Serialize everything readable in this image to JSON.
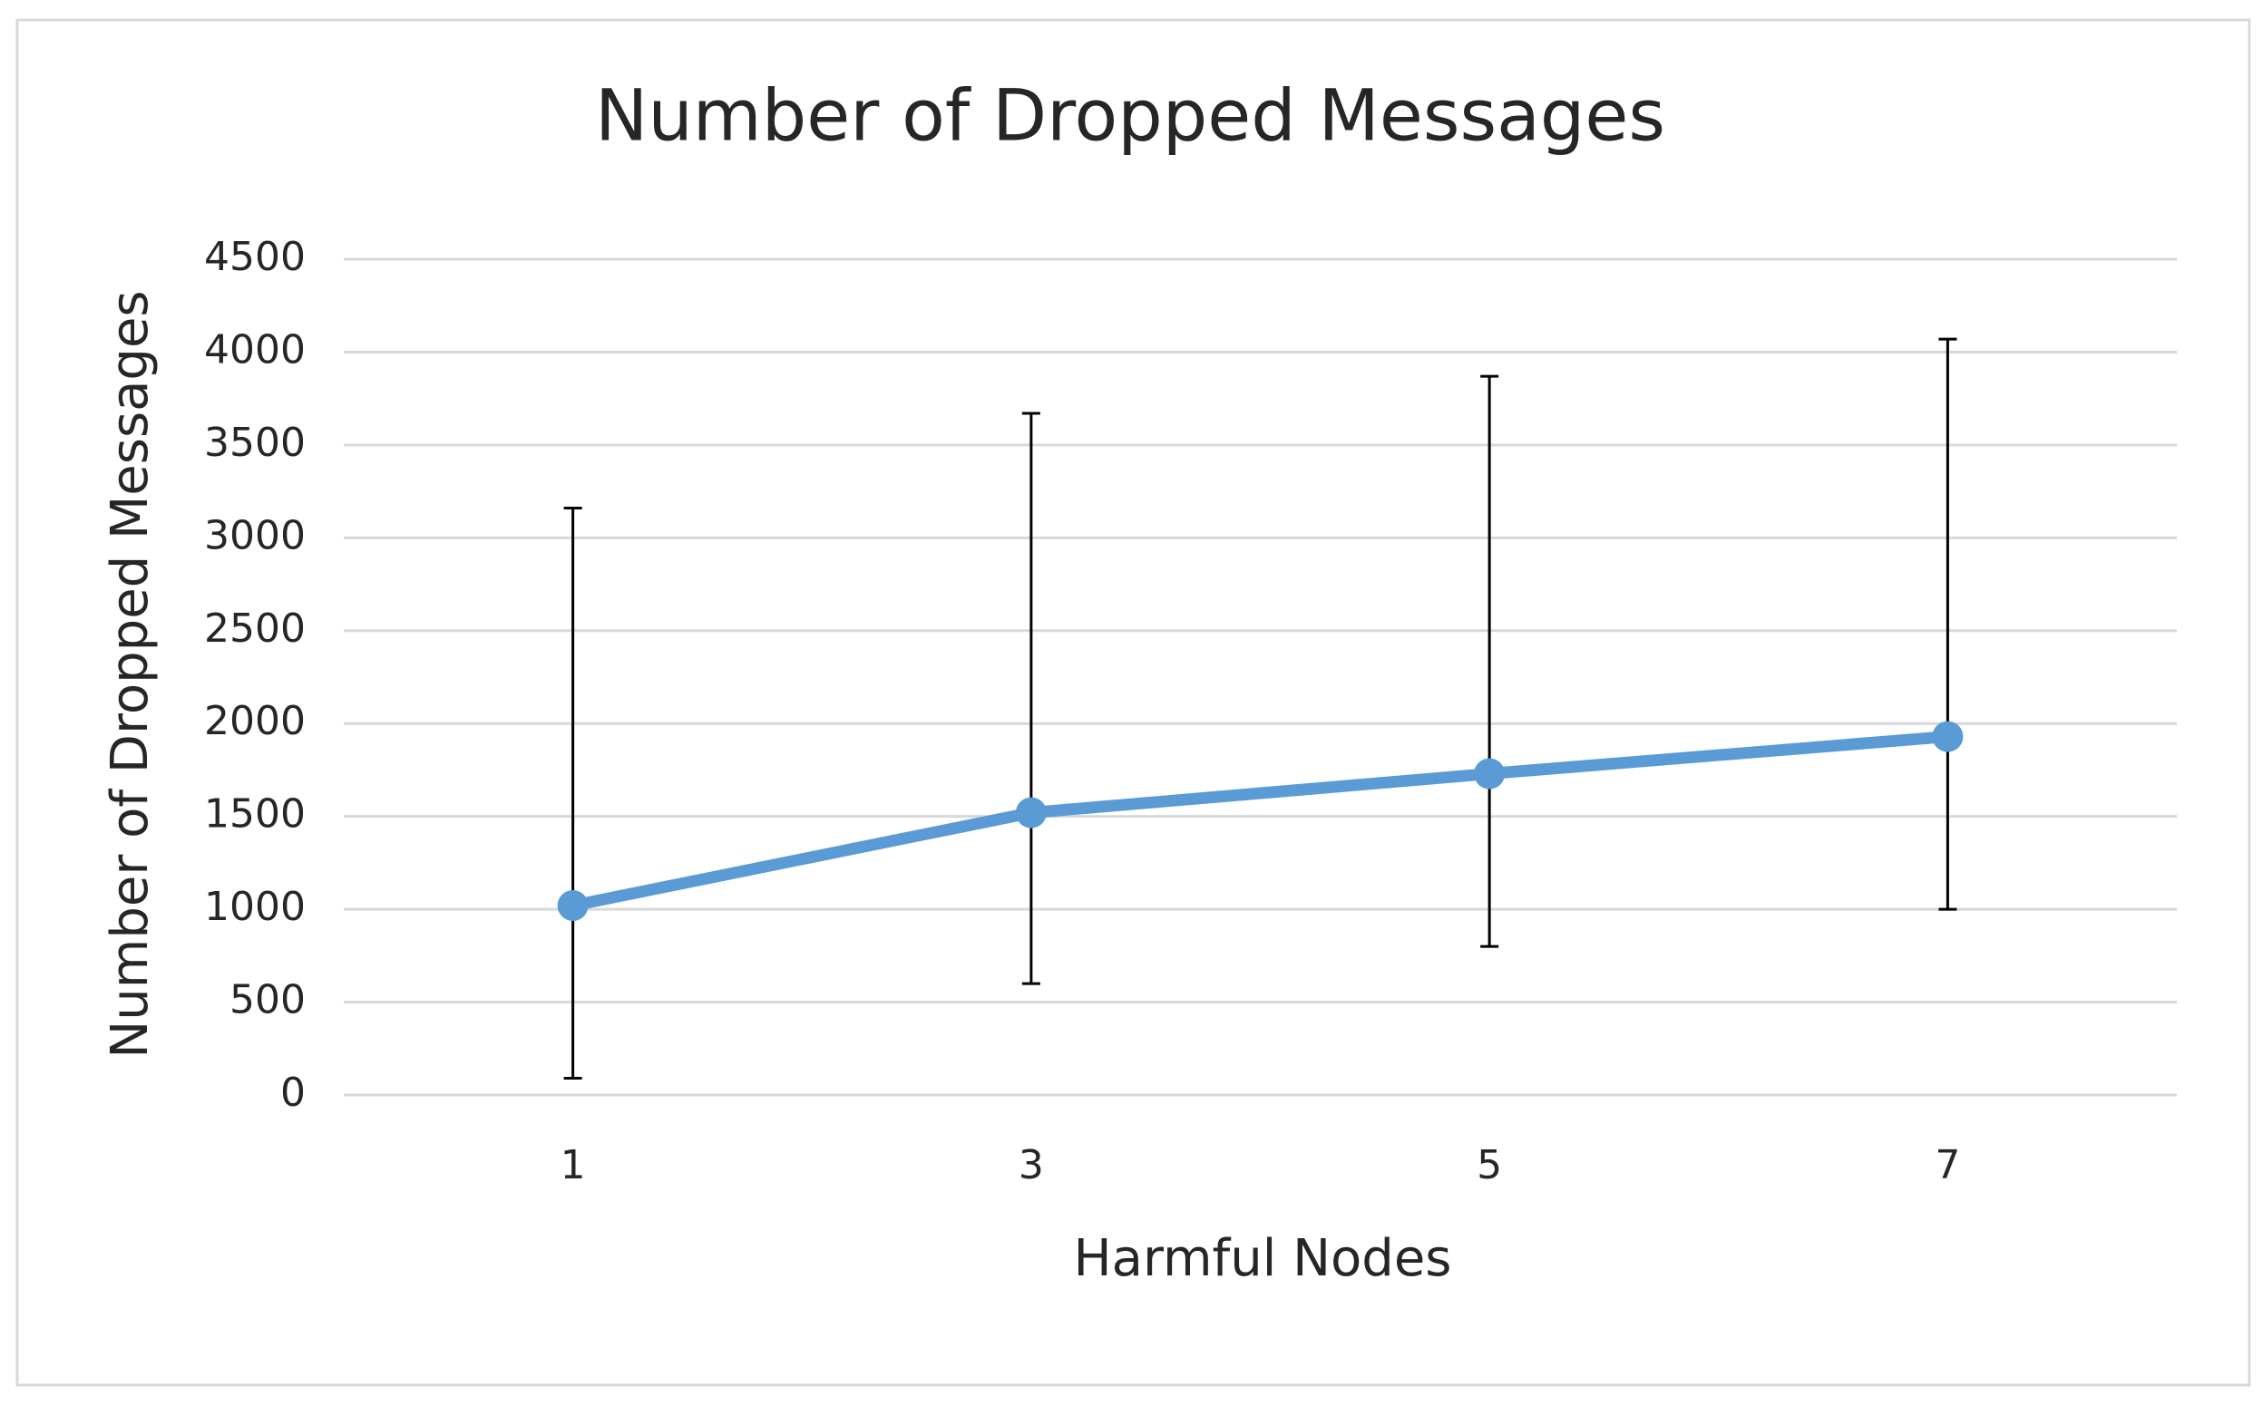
{
  "chart_data": {
    "type": "line",
    "title": "Number of Dropped Messages",
    "x_label": "Harmful Nodes",
    "y_label": "Number of Dropped Messages",
    "categories": [
      "1",
      "3",
      "5",
      "7"
    ],
    "series": [
      {
        "name": "Number of Dropped Messages",
        "color": "#5b9bd5",
        "values": [
          1020,
          1520,
          1730,
          1930
        ],
        "error_plus": [
          2140,
          2150,
          2140,
          2140
        ],
        "error_minus": [
          930,
          920,
          930,
          930
        ]
      }
    ],
    "ylim": [
      0,
      4500
    ],
    "yticks": [
      0,
      500,
      1000,
      1500,
      2000,
      2500,
      3000,
      3500,
      4000,
      4500
    ],
    "grid": true
  }
}
